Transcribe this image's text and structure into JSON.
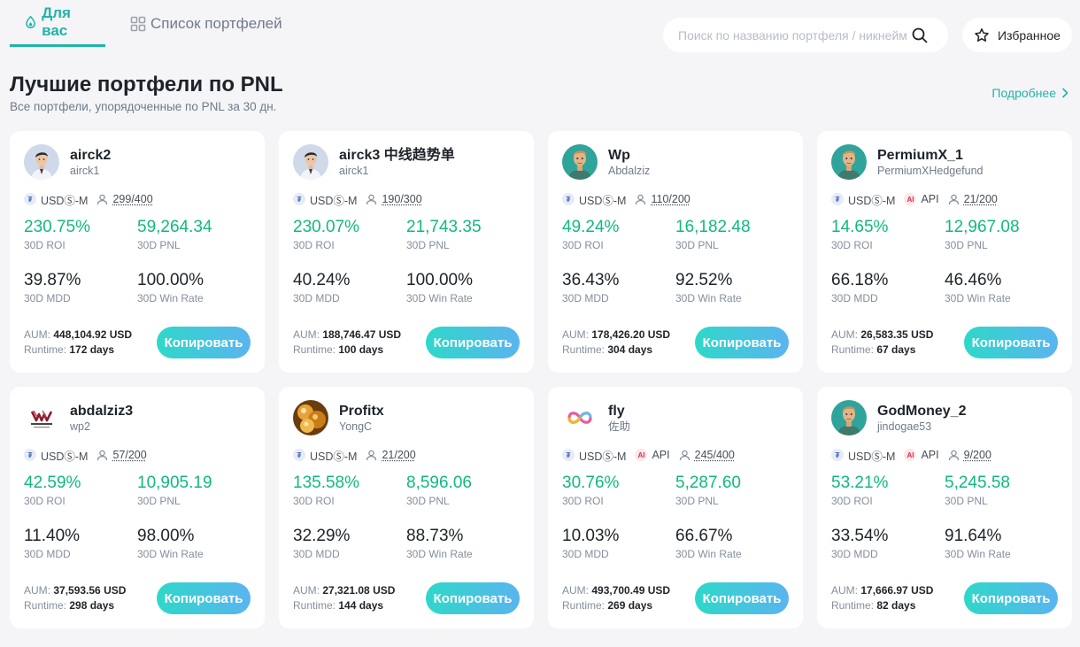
{
  "tabs": [
    {
      "label": "Для вас",
      "icon": "drop-icon",
      "active": true
    },
    {
      "label": "Список портфелей",
      "icon": "grid-icon",
      "active": false
    }
  ],
  "search": {
    "placeholder": "Поиск по названию портфеля / никнейму"
  },
  "favorites": {
    "label": "Избранное",
    "icon": "star-icon"
  },
  "section": {
    "title": "Лучшие портфели по PNL",
    "subtitle": "Все портфели, упорядоченные по PNL за 30 дн.",
    "more_label": "Подробнее"
  },
  "labels": {
    "roi": "30D ROI",
    "pnl": "30D PNL",
    "mdd": "30D MDD",
    "win_rate": "30D Win Rate",
    "aum": "AUM:",
    "runtime": "Runtime:",
    "copy": "Копировать",
    "usdm": "USDⓈ-M",
    "api": "API"
  },
  "colors": {
    "accent": "#1fb5a8",
    "positive": "#10b981",
    "button_start": "#2ed8c9",
    "button_end": "#5ab4f0"
  },
  "cards": [
    {
      "name": "airck2",
      "nick": "airck1",
      "avatar": "person-avatar",
      "api": false,
      "capacity": "299/400",
      "roi": "230.75%",
      "pnl": "59,264.34",
      "mdd": "39.87%",
      "win": "100.00%",
      "aum": "448,104.92 USD",
      "runtime": "172 days"
    },
    {
      "name": "airck3 中线趋势单",
      "nick": "airck1",
      "avatar": "person-avatar",
      "api": false,
      "capacity": "190/300",
      "roi": "230.07%",
      "pnl": "21,743.35",
      "mdd": "40.24%",
      "win": "100.00%",
      "aum": "188,746.47 USD",
      "runtime": "100 days"
    },
    {
      "name": "Wp",
      "nick": "Abdalziz",
      "avatar": "cartoon-avatar",
      "api": false,
      "capacity": "110/200",
      "roi": "49.24%",
      "pnl": "16,182.48",
      "mdd": "36.43%",
      "win": "92.52%",
      "aum": "178,426.20 USD",
      "runtime": "304 days"
    },
    {
      "name": "PermiumX_1",
      "nick": "PermiumXHedgefund",
      "avatar": "cartoon-avatar",
      "api": true,
      "capacity": "21/200",
      "roi": "14.65%",
      "pnl": "12,967.08",
      "mdd": "66.18%",
      "win": "46.46%",
      "aum": "26,583.35 USD",
      "runtime": "67 days"
    },
    {
      "name": "abdalziz3",
      "nick": "wp2",
      "avatar": "logo-avatar",
      "api": false,
      "capacity": "57/200",
      "roi": "42.59%",
      "pnl": "10,905.19",
      "mdd": "11.40%",
      "win": "98.00%",
      "aum": "37,593.56 USD",
      "runtime": "298 days"
    },
    {
      "name": "Profitx",
      "nick": "YongC",
      "avatar": "gold-avatar",
      "api": false,
      "capacity": "21/200",
      "roi": "135.58%",
      "pnl": "8,596.06",
      "mdd": "32.29%",
      "win": "88.73%",
      "aum": "27,321.08 USD",
      "runtime": "144 days"
    },
    {
      "name": "fly",
      "nick": "佐助",
      "avatar": "infinity-avatar",
      "api": true,
      "capacity": "245/400",
      "roi": "30.76%",
      "pnl": "5,287.60",
      "mdd": "10.03%",
      "win": "66.67%",
      "aum": "493,700.49 USD",
      "runtime": "269 days"
    },
    {
      "name": "GodMoney_2",
      "nick": "jindogae53",
      "avatar": "cartoon-avatar",
      "api": true,
      "capacity": "9/200",
      "roi": "53.21%",
      "pnl": "5,245.58",
      "mdd": "33.54%",
      "win": "91.64%",
      "aum": "17,666.97 USD",
      "runtime": "82 days"
    }
  ]
}
